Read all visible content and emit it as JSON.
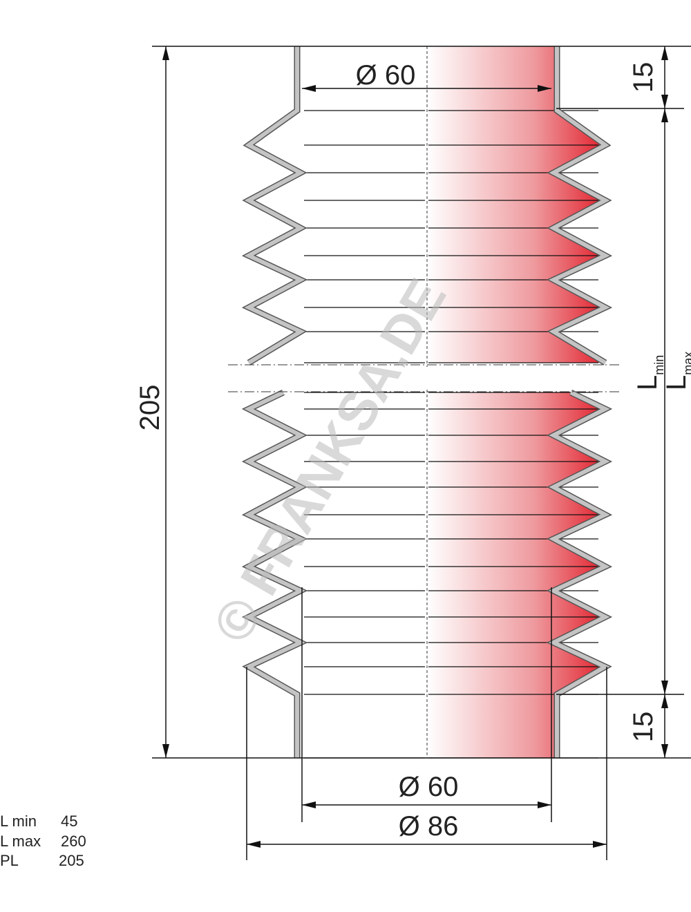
{
  "dimensions": {
    "top_inner_diameter": "Ø 60",
    "top_collar_length": "15",
    "pressed_length": "205",
    "l_min_label": {
      "main": "L",
      "sub": "min"
    },
    "l_max_label": {
      "main": "L",
      "sub": "max"
    },
    "bottom_collar_length": "15",
    "bottom_inner_diameter": "Ø 60",
    "outer_diameter": "Ø 86"
  },
  "watermark": "© FRANKSA.DE",
  "specs": [
    {
      "label": "L min",
      "value": "45"
    },
    {
      "label": "L max",
      "value": "260"
    },
    {
      "label": "PL",
      "value": "205"
    }
  ]
}
